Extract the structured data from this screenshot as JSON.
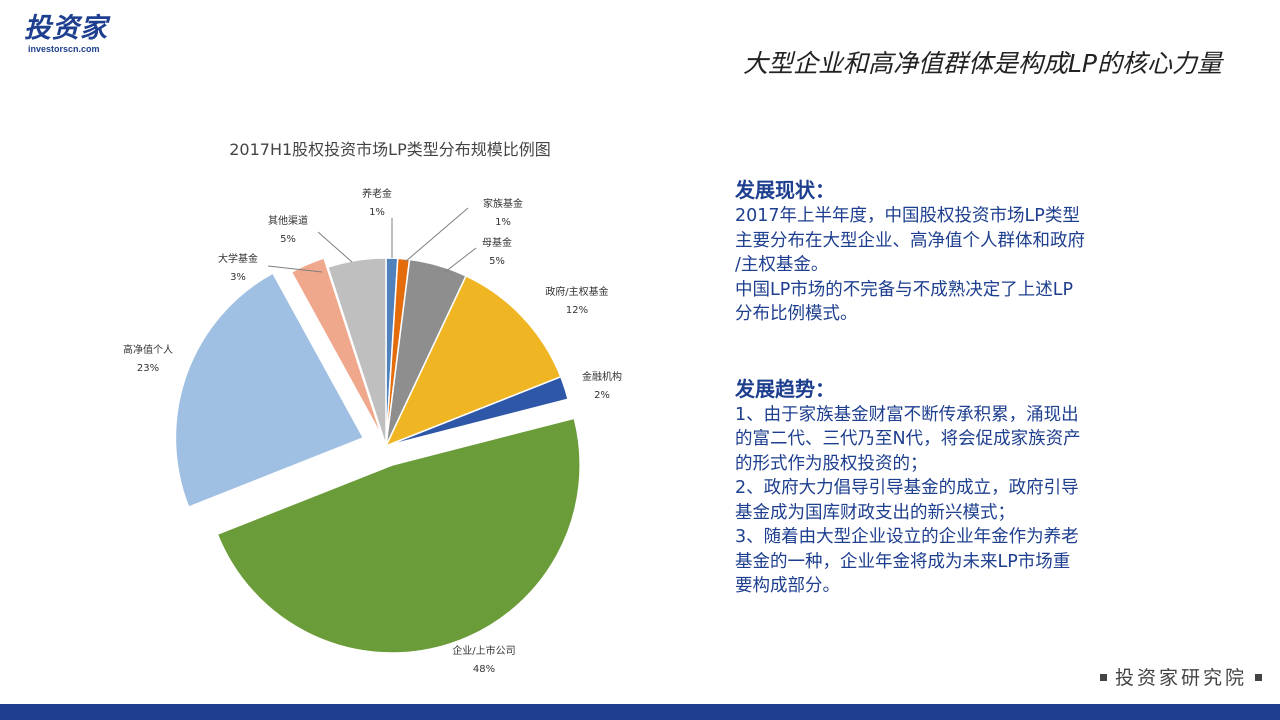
{
  "brand": {
    "logo_text": "投资家",
    "logo_sub": "investorscn.com",
    "footer": "投资家研究院"
  },
  "slide_title": "大型企业和高净值群体是构成LP的核心力量",
  "chart_data": {
    "type": "pie",
    "title": "2017H1股权投资市场LP类型分布规模比例图",
    "slices": [
      {
        "name": "养老金",
        "value": 1,
        "label": "1%",
        "color": "#4f81bd"
      },
      {
        "name": "家族基金",
        "value": 1,
        "label": "1%",
        "color": "#e46c0a"
      },
      {
        "name": "母基金",
        "value": 5,
        "label": "5%",
        "color": "#8e8e8e"
      },
      {
        "name": "政府/主权基金",
        "value": 12,
        "label": "12%",
        "color": "#f0b522"
      },
      {
        "name": "金融机构",
        "value": 2,
        "label": "2%",
        "color": "#2e57a8"
      },
      {
        "name": "企业/上市公司",
        "value": 48,
        "label": "48%",
        "color": "#6b9c3a"
      },
      {
        "name": "高净值个人",
        "value": 23,
        "label": "23%",
        "color": "#9fbfe3"
      },
      {
        "name": "大学基金",
        "value": 3,
        "label": "3%",
        "color": "#f0a88d"
      },
      {
        "name": "其他渠道",
        "value": 5,
        "label": "5%",
        "color": "#bfbfbf"
      }
    ]
  },
  "status": {
    "heading": "发展现状：",
    "lines": [
      "2017年上半年度，中国股权投资市场LP类型",
      "主要分布在大型企业、高净值个人群体和政府",
      "/主权基金。",
      "中国LP市场的不完备与不成熟决定了上述LP",
      "分布比例模式。"
    ]
  },
  "trend": {
    "heading": "发展趋势：",
    "lines": [
      "1、由于家族基金财富不断传承积累，涌现出",
      "的富二代、三代乃至N代，将会促成家族资产",
      "的形式作为股权投资的；",
      "2、政府大力倡导引导基金的成立，政府引导",
      "基金成为国库财政支出的新兴模式；",
      "3、随着由大型企业设立的企业年金作为养老",
      "基金的一种，企业年金将成为未来LP市场重",
      "要构成部分。"
    ]
  }
}
